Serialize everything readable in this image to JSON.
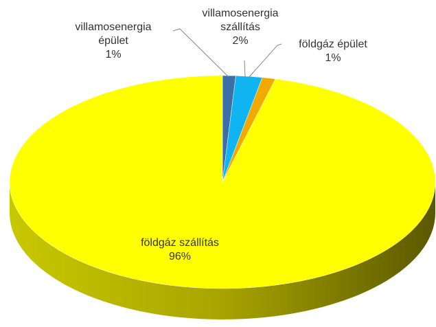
{
  "chart_data": {
    "type": "pie",
    "3d": true,
    "categories": [
      "villamosenergia épület",
      "villamosenergia szállítás",
      "földgáz épület",
      "földgáz szállítás"
    ],
    "values": [
      1,
      2,
      1,
      96
    ],
    "value_labels": [
      "1%",
      "2%",
      "1%",
      "96%"
    ],
    "colors": [
      "#3c6fa8",
      "#10b4f0",
      "#f2a900",
      "#ffff00"
    ]
  }
}
